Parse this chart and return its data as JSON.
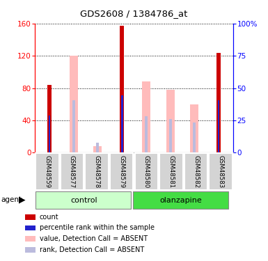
{
  "title": "GDS2608 / 1384786_at",
  "samples": [
    "GSM48559",
    "GSM48577",
    "GSM48578",
    "GSM48579",
    "GSM48580",
    "GSM48581",
    "GSM48582",
    "GSM48583"
  ],
  "count_values": [
    84,
    0,
    0,
    157,
    0,
    0,
    0,
    124
  ],
  "percentile_values": [
    46,
    0,
    0,
    71,
    0,
    0,
    0,
    65
  ],
  "absent_value_values": [
    0,
    120,
    8,
    0,
    88,
    78,
    60,
    0
  ],
  "absent_rank_values": [
    0,
    65,
    12,
    0,
    45,
    42,
    37,
    0
  ],
  "ylim": [
    0,
    160
  ],
  "yticks_left": [
    0,
    40,
    80,
    120,
    160
  ],
  "yticks_right": [
    0,
    25,
    50,
    75,
    100
  ],
  "color_count": "#cc0000",
  "color_percentile": "#2222cc",
  "color_absent_value": "#ffbbbb",
  "color_absent_rank": "#bbbbdd",
  "control_color_light": "#ccffcc",
  "control_color_dark": "#44dd44",
  "legend_items": [
    {
      "label": "count",
      "color": "#cc0000"
    },
    {
      "label": "percentile rank within the sample",
      "color": "#2222cc"
    },
    {
      "label": "value, Detection Call = ABSENT",
      "color": "#ffbbbb"
    },
    {
      "label": "rank, Detection Call = ABSENT",
      "color": "#bbbbdd"
    }
  ]
}
